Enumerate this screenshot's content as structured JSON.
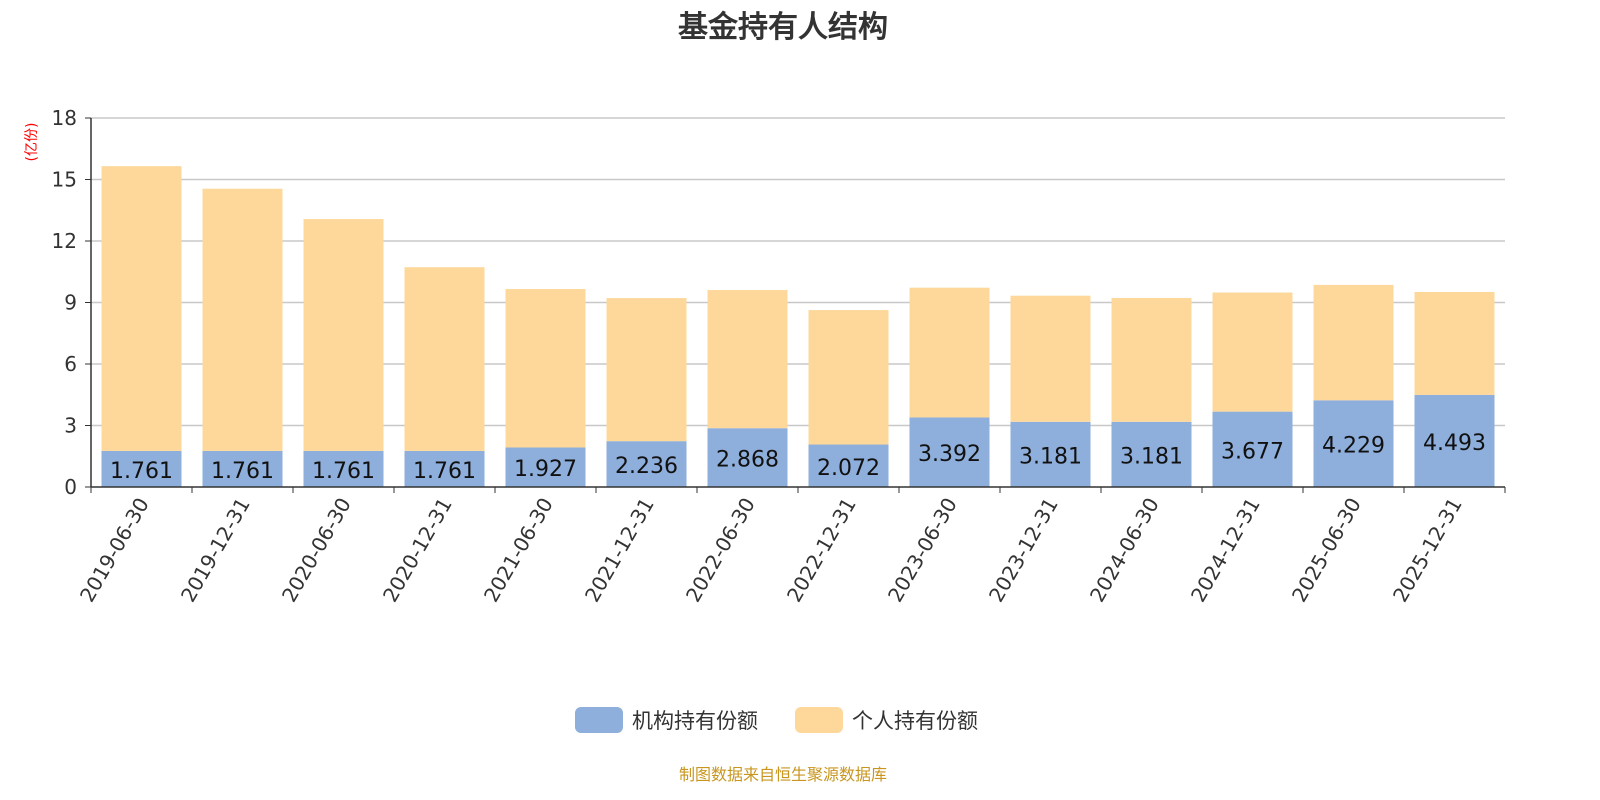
{
  "chart_data": {
    "type": "bar",
    "stacked": true,
    "title": "基金持有人结构",
    "ylabel": "(亿份)",
    "ylim": [
      0,
      18
    ],
    "yticks": [
      0,
      3,
      6,
      9,
      12,
      15,
      18
    ],
    "grid": true,
    "legend_position": "bottom",
    "categories": [
      "2019-06-30",
      "2019-12-31",
      "2020-06-30",
      "2020-12-31",
      "2021-06-30",
      "2021-12-31",
      "2022-06-30",
      "2022-12-31",
      "2023-06-30",
      "2023-12-31",
      "2024-06-30",
      "2024-12-31",
      "2025-06-30",
      "2025-12-31"
    ],
    "series": [
      {
        "name": "机构持有份额",
        "color": "#8eaedb",
        "values": [
          1.761,
          1.761,
          1.761,
          1.761,
          1.927,
          2.236,
          2.868,
          2.072,
          3.392,
          3.181,
          3.181,
          3.677,
          4.229,
          4.493
        ],
        "labels": [
          "1.761",
          "1.761",
          "1.761",
          "1.761",
          "1.927",
          "2.236",
          "2.868",
          "2.072",
          "3.392",
          "3.181",
          "3.181",
          "3.677",
          "4.229",
          "4.493"
        ]
      },
      {
        "name": "个人持有份额",
        "color": "#fdd89a",
        "values": [
          13.89,
          12.79,
          11.31,
          8.96,
          7.73,
          6.98,
          6.74,
          6.56,
          6.33,
          6.15,
          6.04,
          5.81,
          5.63,
          5.02
        ]
      }
    ]
  },
  "footer": {
    "source": "制图数据来自恒生聚源数据库",
    "source_color": "#c8961e"
  }
}
